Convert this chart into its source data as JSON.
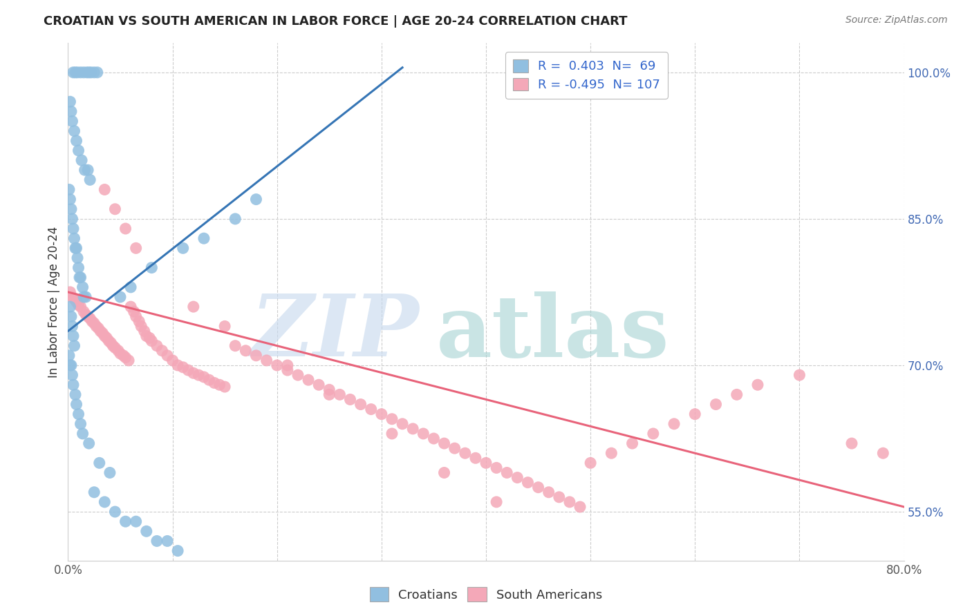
{
  "title": "CROATIAN VS SOUTH AMERICAN IN LABOR FORCE | AGE 20-24 CORRELATION CHART",
  "source": "Source: ZipAtlas.com",
  "ylabel": "In Labor Force | Age 20-24",
  "xlim": [
    0.0,
    0.8
  ],
  "ylim": [
    0.5,
    1.03
  ],
  "ytick_positions": [
    0.55,
    0.7,
    0.85,
    1.0
  ],
  "ytick_labels": [
    "55.0%",
    "70.0%",
    "85.0%",
    "100.0%"
  ],
  "xtick_positions": [
    0.0,
    0.1,
    0.2,
    0.3,
    0.4,
    0.5,
    0.6,
    0.7,
    0.8
  ],
  "xtick_labels": [
    "0.0%",
    "",
    "",
    "",
    "",
    "",
    "",
    "",
    "80.0%"
  ],
  "blue_color": "#91bfe0",
  "pink_color": "#f4a8b8",
  "blue_line_color": "#3575b5",
  "pink_line_color": "#e8637a",
  "grid_color": "#cccccc",
  "background_color": "#ffffff",
  "title_fontsize": 13,
  "source_fontsize": 10,
  "tick_fontsize": 12,
  "ylabel_fontsize": 12,
  "legend_fontsize": 13,
  "watermark_zip_color": "#c5d8ee",
  "watermark_atlas_color": "#9dcfcf",
  "blue_line_x0": 0.0,
  "blue_line_y0": 0.735,
  "blue_line_x1": 0.32,
  "blue_line_y1": 1.005,
  "pink_line_x0": 0.0,
  "pink_line_y0": 0.775,
  "pink_line_x1": 0.8,
  "pink_line_y1": 0.555,
  "croatians_x": [
    0.005,
    0.007,
    0.009,
    0.012,
    0.015,
    0.018,
    0.02,
    0.022,
    0.025,
    0.028,
    0.002,
    0.003,
    0.004,
    0.006,
    0.008,
    0.01,
    0.013,
    0.016,
    0.019,
    0.021,
    0.001,
    0.002,
    0.003,
    0.004,
    0.005,
    0.006,
    0.007,
    0.008,
    0.009,
    0.01,
    0.011,
    0.012,
    0.014,
    0.015,
    0.017,
    0.002,
    0.003,
    0.004,
    0.005,
    0.006,
    0.001,
    0.002,
    0.003,
    0.004,
    0.005,
    0.007,
    0.008,
    0.01,
    0.012,
    0.014,
    0.05,
    0.06,
    0.08,
    0.11,
    0.13,
    0.16,
    0.18,
    0.02,
    0.03,
    0.04,
    0.025,
    0.035,
    0.045,
    0.055,
    0.065,
    0.075,
    0.085,
    0.095,
    0.105
  ],
  "croatians_y": [
    1.0,
    1.0,
    1.0,
    1.0,
    1.0,
    1.0,
    1.0,
    1.0,
    1.0,
    1.0,
    0.97,
    0.96,
    0.95,
    0.94,
    0.93,
    0.92,
    0.91,
    0.9,
    0.9,
    0.89,
    0.88,
    0.87,
    0.86,
    0.85,
    0.84,
    0.83,
    0.82,
    0.82,
    0.81,
    0.8,
    0.79,
    0.79,
    0.78,
    0.77,
    0.77,
    0.76,
    0.75,
    0.74,
    0.73,
    0.72,
    0.71,
    0.7,
    0.7,
    0.69,
    0.68,
    0.67,
    0.66,
    0.65,
    0.64,
    0.63,
    0.77,
    0.78,
    0.8,
    0.82,
    0.83,
    0.85,
    0.87,
    0.62,
    0.6,
    0.59,
    0.57,
    0.56,
    0.55,
    0.54,
    0.54,
    0.53,
    0.52,
    0.52,
    0.51
  ],
  "south_americans_x": [
    0.002,
    0.004,
    0.006,
    0.008,
    0.01,
    0.012,
    0.015,
    0.017,
    0.019,
    0.021,
    0.023,
    0.025,
    0.027,
    0.029,
    0.031,
    0.033,
    0.035,
    0.037,
    0.039,
    0.041,
    0.043,
    0.045,
    0.048,
    0.05,
    0.053,
    0.055,
    0.058,
    0.06,
    0.063,
    0.065,
    0.068,
    0.07,
    0.073,
    0.075,
    0.078,
    0.08,
    0.085,
    0.09,
    0.095,
    0.1,
    0.105,
    0.11,
    0.115,
    0.12,
    0.125,
    0.13,
    0.135,
    0.14,
    0.145,
    0.15,
    0.16,
    0.17,
    0.18,
    0.19,
    0.2,
    0.21,
    0.22,
    0.23,
    0.24,
    0.25,
    0.26,
    0.27,
    0.28,
    0.29,
    0.3,
    0.31,
    0.32,
    0.33,
    0.34,
    0.35,
    0.36,
    0.37,
    0.38,
    0.39,
    0.4,
    0.41,
    0.42,
    0.43,
    0.44,
    0.45,
    0.46,
    0.47,
    0.48,
    0.49,
    0.5,
    0.52,
    0.54,
    0.56,
    0.58,
    0.6,
    0.62,
    0.64,
    0.66,
    0.7,
    0.75,
    0.78,
    0.035,
    0.045,
    0.055,
    0.065,
    0.12,
    0.15,
    0.21,
    0.25,
    0.31,
    0.36,
    0.41
  ],
  "south_americans_y": [
    0.775,
    0.77,
    0.768,
    0.765,
    0.762,
    0.76,
    0.755,
    0.752,
    0.75,
    0.748,
    0.745,
    0.743,
    0.74,
    0.738,
    0.735,
    0.733,
    0.73,
    0.728,
    0.725,
    0.723,
    0.72,
    0.718,
    0.715,
    0.712,
    0.71,
    0.708,
    0.705,
    0.76,
    0.755,
    0.75,
    0.745,
    0.74,
    0.735,
    0.73,
    0.728,
    0.725,
    0.72,
    0.715,
    0.71,
    0.705,
    0.7,
    0.698,
    0.695,
    0.692,
    0.69,
    0.688,
    0.685,
    0.682,
    0.68,
    0.678,
    0.72,
    0.715,
    0.71,
    0.705,
    0.7,
    0.695,
    0.69,
    0.685,
    0.68,
    0.675,
    0.67,
    0.665,
    0.66,
    0.655,
    0.65,
    0.645,
    0.64,
    0.635,
    0.63,
    0.625,
    0.62,
    0.615,
    0.61,
    0.605,
    0.6,
    0.595,
    0.59,
    0.585,
    0.58,
    0.575,
    0.57,
    0.565,
    0.56,
    0.555,
    0.6,
    0.61,
    0.62,
    0.63,
    0.64,
    0.65,
    0.66,
    0.67,
    0.68,
    0.69,
    0.62,
    0.61,
    0.88,
    0.86,
    0.84,
    0.82,
    0.76,
    0.74,
    0.7,
    0.67,
    0.63,
    0.59,
    0.56
  ]
}
